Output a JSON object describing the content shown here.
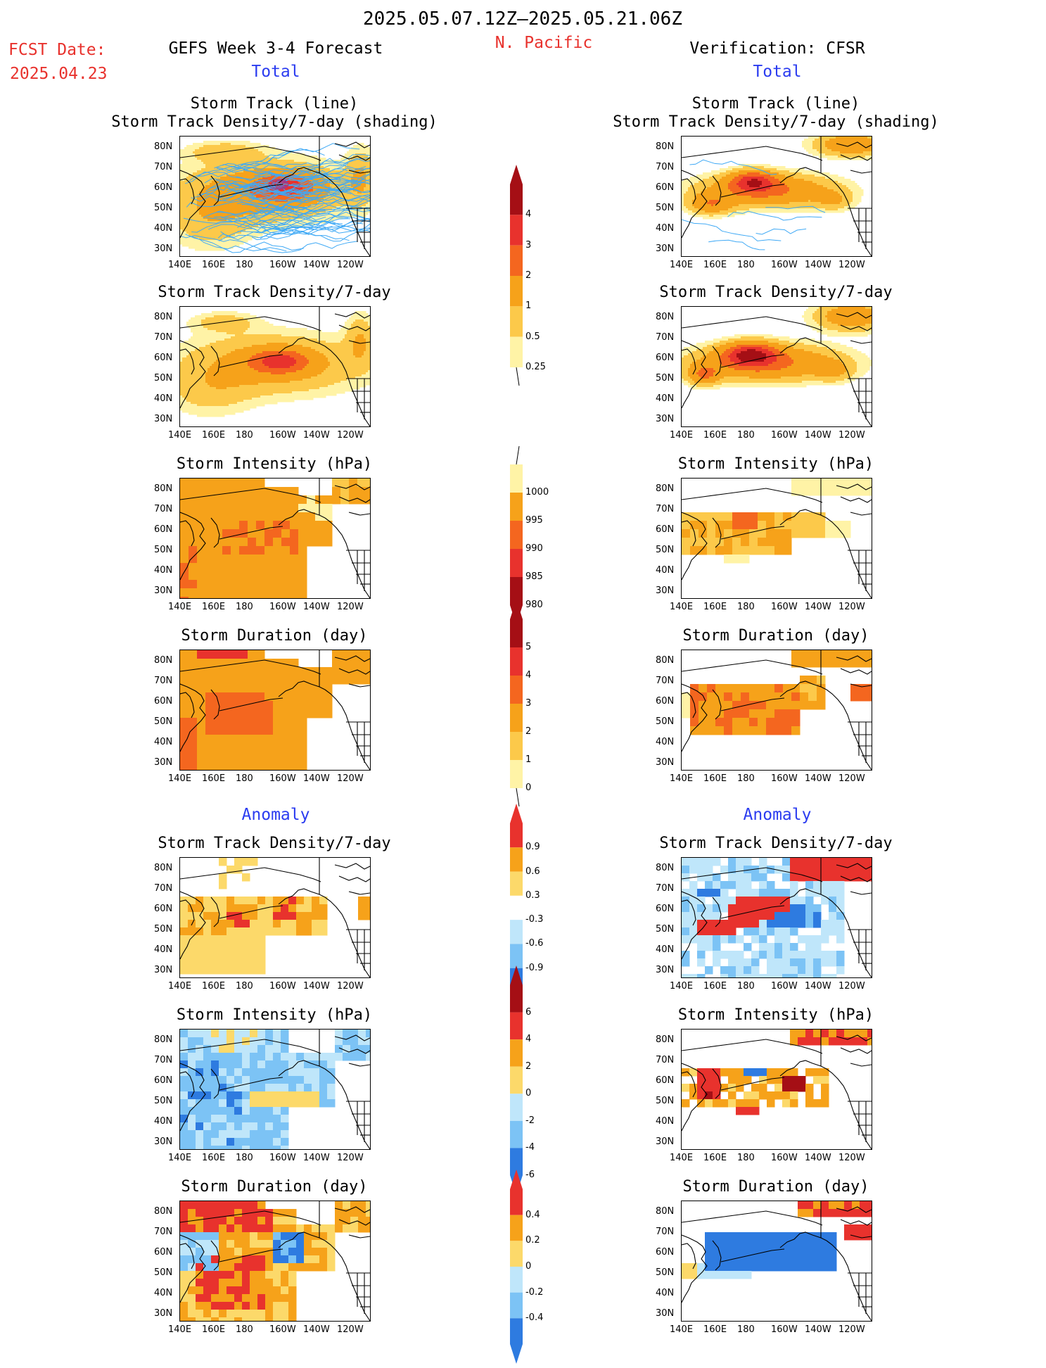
{
  "header": {
    "date_range": "2025.05.07.12Z–2025.05.21.06Z",
    "fcst_label": "FCST Date:",
    "fcst_date": "2025.04.23",
    "left_title": "GEFS Week 3-4 Forecast",
    "region": "N. Pacific",
    "right_title": "Verification: CFSR",
    "total_label_left": "Total",
    "total_label_right": "Total",
    "anomaly_label_left": "Anomaly",
    "anomaly_label_right": "Anomaly"
  },
  "axes": {
    "lat_labels": [
      "80N",
      "70N",
      "60N",
      "50N",
      "40N",
      "30N"
    ],
    "lon_labels": [
      "140E",
      "160E",
      "180",
      "160W",
      "140W",
      "120W"
    ]
  },
  "panels": [
    {
      "id": "fcst-track",
      "col": "left",
      "titles": [
        "Storm Track (line)",
        "Storm Track Density/7-day (shading)"
      ],
      "kind": "track-density-lines",
      "scale": "density"
    },
    {
      "id": "cfsr-track",
      "col": "right",
      "titles": [
        "Storm Track (line)",
        "Storm Track Density/7-day (shading)"
      ],
      "kind": "track-density-lines-sparse",
      "scale": "density"
    },
    {
      "id": "fcst-density",
      "col": "left",
      "titles": [
        "Storm Track Density/7-day"
      ],
      "kind": "density",
      "scale": "density"
    },
    {
      "id": "cfsr-density",
      "col": "right",
      "titles": [
        "Storm Track Density/7-day"
      ],
      "kind": "density-strong",
      "scale": "density"
    },
    {
      "id": "fcst-intensity",
      "col": "left",
      "titles": [
        "Storm Intensity (hPa)"
      ],
      "kind": "intensity",
      "scale": "intensity"
    },
    {
      "id": "cfsr-intensity",
      "col": "right",
      "titles": [
        "Storm Intensity (hPa)"
      ],
      "kind": "intensity-sparse",
      "scale": "intensity"
    },
    {
      "id": "fcst-duration",
      "col": "left",
      "titles": [
        "Storm Duration (day)"
      ],
      "kind": "duration",
      "scale": "duration"
    },
    {
      "id": "cfsr-duration",
      "col": "right",
      "titles": [
        "Storm Duration (day)"
      ],
      "kind": "duration-sparse",
      "scale": "duration"
    },
    {
      "id": "fcst-anom-density",
      "col": "left",
      "titles": [
        "Storm Track Density/7-day"
      ],
      "kind": "anom-density",
      "scale": "anom-density"
    },
    {
      "id": "cfsr-anom-density",
      "col": "right",
      "titles": [
        "Storm Track Density/7-day"
      ],
      "kind": "anom-density-strong",
      "scale": "anom-density"
    },
    {
      "id": "fcst-anom-intensity",
      "col": "left",
      "titles": [
        "Storm Intensity (hPa)"
      ],
      "kind": "anom-intensity",
      "scale": "anom-intensity"
    },
    {
      "id": "cfsr-anom-intensity",
      "col": "right",
      "titles": [
        "Storm Intensity (hPa)"
      ],
      "kind": "anom-intensity-cfsr",
      "scale": "anom-intensity"
    },
    {
      "id": "fcst-anom-duration",
      "col": "left",
      "titles": [
        "Storm Duration (day)"
      ],
      "kind": "anom-duration",
      "scale": "anom-duration"
    },
    {
      "id": "cfsr-anom-duration",
      "col": "right",
      "titles": [
        "Storm Duration (day)"
      ],
      "kind": "anom-duration-cfsr",
      "scale": "anom-duration"
    }
  ],
  "colorbars": [
    {
      "id": "density",
      "labels": [
        "4",
        "3",
        "2",
        "1",
        "0.5",
        "0.25"
      ],
      "colors": [
        "#a50f15",
        "#e8322d",
        "#f4661f",
        "#f6a21a",
        "#fcc94a",
        "#fff3a6"
      ],
      "arrow": "top"
    },
    {
      "id": "intensity",
      "labels": [
        "1000",
        "995",
        "990",
        "985",
        "980"
      ],
      "colors": [
        "#fff3a6",
        "#f6a21a",
        "#f4661f",
        "#e8322d",
        "#a50f15"
      ],
      "arrow": "bottom"
    },
    {
      "id": "duration",
      "labels": [
        "5",
        "4",
        "3",
        "2",
        "1",
        "0"
      ],
      "colors": [
        "#a50f15",
        "#e8322d",
        "#f4661f",
        "#f6a21a",
        "#fcc94a",
        "#fff3a6"
      ],
      "arrow": "top"
    },
    {
      "id": "anom-density",
      "labels": [
        "0.9",
        "0.6",
        "0.3",
        "-0.3",
        "-0.6",
        "-0.9"
      ],
      "colors": [
        "#e8322d",
        "#f6a21a",
        "#fcd96a",
        "#ffffff",
        "#bfe6fa",
        "#7cc3f5",
        "#2e7be0"
      ],
      "arrow": "both"
    },
    {
      "id": "anom-intensity",
      "labels": [
        "6",
        "4",
        "2",
        "0",
        "-2",
        "-4",
        "-6"
      ],
      "colors": [
        "#a50f15",
        "#e8322d",
        "#f6a21a",
        "#fcd96a",
        "#bfe6fa",
        "#7cc3f5",
        "#2e7be0"
      ],
      "arrow": "both"
    },
    {
      "id": "anom-duration",
      "labels": [
        "0.4",
        "0.2",
        "0",
        "-0.2",
        "-0.4"
      ],
      "colors": [
        "#e8322d",
        "#f6a21a",
        "#fcd96a",
        "#bfe6fa",
        "#7cc3f5",
        "#2e7be0"
      ],
      "arrow": "both"
    }
  ]
}
